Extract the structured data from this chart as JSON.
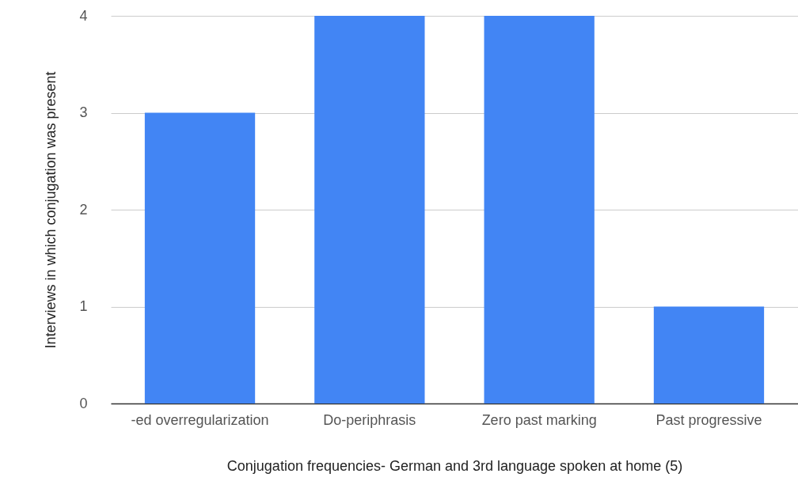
{
  "chart_data": {
    "type": "bar",
    "xlabel": "Conjugation frequencies- German and 3rd language spoken at home (5)",
    "ylabel": "Interviews in which conjugation was present",
    "categories": [
      "-ed overregularization",
      "Do-periphrasis",
      "Zero past marking",
      "Past progressive"
    ],
    "values": [
      3,
      4,
      4,
      1
    ],
    "color": "#4285f4",
    "ylim": [
      0,
      4
    ],
    "yticks": [
      0,
      1,
      2,
      3,
      4
    ],
    "grid": "y"
  }
}
